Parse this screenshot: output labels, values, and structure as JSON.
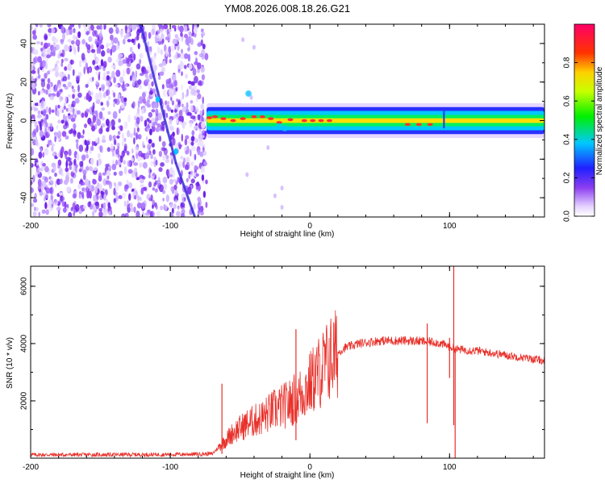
{
  "title": "YM08.2026.008.18.26.G21",
  "chart_data": [
    {
      "type": "heatmap",
      "xlabel": "Height of straight line (km)",
      "ylabel": "Frequency (Hz)",
      "xlim": [
        -200,
        168
      ],
      "ylim": [
        -50,
        50
      ],
      "xticks": [
        -200,
        -100,
        0,
        100
      ],
      "yticks": [
        -40,
        -20,
        0,
        20,
        40
      ],
      "colorbar": {
        "label": "Normalized spectral amplitude",
        "range": [
          0,
          1
        ],
        "ticks": [
          0.0,
          0.2,
          0.4,
          0.6,
          0.8
        ]
      },
      "features": {
        "noise_region_x": [
          -200,
          -74
        ],
        "signal_track_x": [
          -74,
          168
        ],
        "signal_track_frequency_hz": 0
      }
    },
    {
      "type": "line",
      "xlabel": "Height of straight line (km)",
      "ylabel": "SNR (10 * v/v)",
      "xlim": [
        -200,
        168
      ],
      "ylim": [
        0,
        6700
      ],
      "xticks": [
        -200,
        -100,
        0,
        100
      ],
      "yticks": [
        2000,
        4000,
        6000
      ],
      "color": "#e8302a",
      "series": [
        {
          "name": "SNR",
          "x": [
            -200,
            -150,
            -100,
            -70,
            -65,
            -55,
            -45,
            -35,
            -25,
            -15,
            -5,
            5,
            15,
            25,
            35,
            50,
            70,
            90,
            100,
            105,
            120,
            140,
            168
          ],
          "values": [
            120,
            120,
            130,
            150,
            400,
            900,
            1200,
            1400,
            1700,
            1900,
            2300,
            2900,
            3500,
            3850,
            4000,
            4100,
            4100,
            4050,
            3900,
            3800,
            3750,
            3600,
            3400
          ]
        }
      ],
      "annotations": {
        "spikes": [
          {
            "x": -63,
            "value": 2600
          },
          {
            "x": -10,
            "value": 4500
          },
          {
            "x": 84,
            "value": 4700
          },
          {
            "x": 103,
            "value": 6700
          }
        ]
      }
    }
  ]
}
